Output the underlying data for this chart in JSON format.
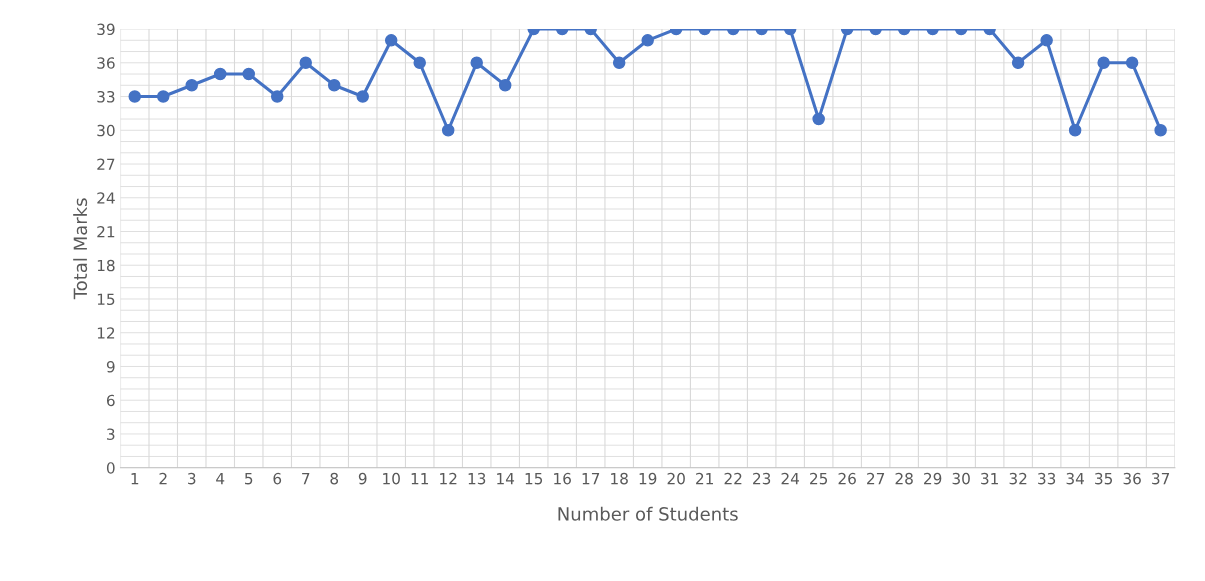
{
  "chart_data": {
    "type": "line",
    "xlabel": "Number of Students",
    "ylabel": "Total Marks",
    "categories": [
      "1",
      "2",
      "3",
      "4",
      "5",
      "6",
      "7",
      "8",
      "9",
      "10",
      "11",
      "12",
      "13",
      "14",
      "15",
      "16",
      "17",
      "18",
      "19",
      "20",
      "21",
      "22",
      "23",
      "24",
      "25",
      "26",
      "27",
      "28",
      "29",
      "30",
      "31",
      "32",
      "33",
      "34",
      "35",
      "36",
      "37"
    ],
    "series": [
      {
        "color": "#4472c4",
        "values": [
          33,
          33,
          34,
          35,
          35,
          33,
          36,
          34,
          33,
          38,
          36,
          30,
          36,
          34,
          39,
          39,
          39,
          36,
          38,
          39,
          39,
          39,
          39,
          39,
          31,
          39,
          39,
          39,
          39,
          39,
          39,
          36,
          38,
          30,
          36,
          36,
          30
        ]
      }
    ],
    "ylim": [
      0,
      39
    ],
    "yticks": [
      0,
      3,
      6,
      9,
      12,
      15,
      18,
      21,
      24,
      27,
      30,
      33,
      36,
      39
    ],
    "grid": true,
    "legend": false,
    "marker": "circle",
    "line_style": "solid"
  }
}
